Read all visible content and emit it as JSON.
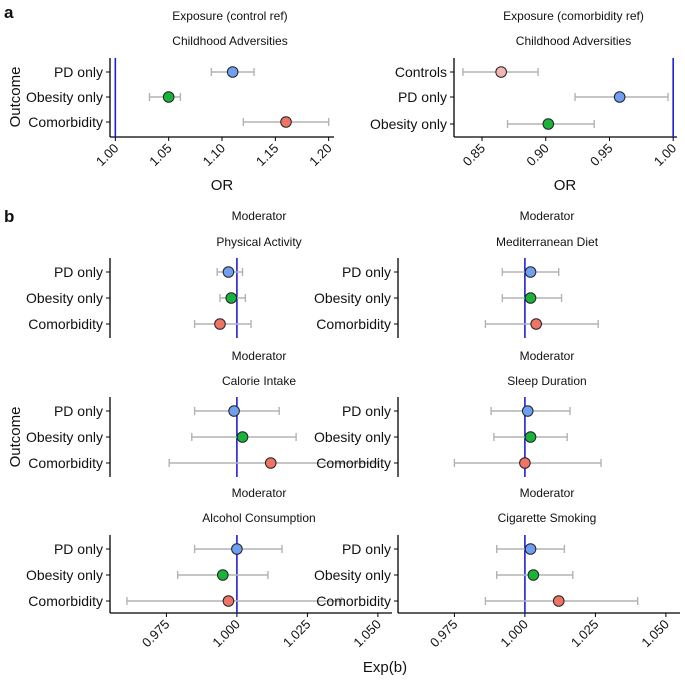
{
  "figure": {
    "panel_a_label": "a",
    "panel_b_label": "b",
    "outcome_label": "Outcome",
    "or_label": "OR",
    "expb_label": "Exp(b)"
  },
  "colors": {
    "Controls": "#f4b6b0",
    "PD only": "#6f9ff0",
    "Obesity only": "#19b23b",
    "Comorbidity": "#ee7466",
    "refline": "#1f1fd6",
    "whisker": "#b3b3b3"
  },
  "chart_data": [
    {
      "id": "a1",
      "type": "forest",
      "header": "Exposure (control ref)",
      "title": "Childhood Adversities",
      "xlabel": "OR",
      "xlim": [
        0.995,
        1.205
      ],
      "ref": 1.0,
      "ticks": [
        "1.00",
        "1.05",
        "1.10",
        "1.15",
        "1.20"
      ],
      "tick_values": [
        1.0,
        1.05,
        1.1,
        1.15,
        1.2
      ],
      "categories": [
        "PD only",
        "Obesity only",
        "Comorbidity"
      ],
      "estimates": [
        1.11,
        1.05,
        1.16
      ],
      "lower": [
        1.09,
        1.032,
        1.12
      ],
      "upper": [
        1.13,
        1.061,
        1.2
      ]
    },
    {
      "id": "a2",
      "type": "forest",
      "header": "Exposure (comorbidity ref)",
      "title": "Childhood Adversities",
      "xlabel": "OR",
      "xlim": [
        0.828,
        1.003
      ],
      "ref": 1.0,
      "ticks": [
        "0.85",
        "0.90",
        "0.95",
        "1.00"
      ],
      "tick_values": [
        0.85,
        0.9,
        0.95,
        1.0
      ],
      "categories": [
        "Controls",
        "PD only",
        "Obesity only"
      ],
      "estimates": [
        0.865,
        0.958,
        0.902
      ],
      "lower": [
        0.835,
        0.923,
        0.87
      ],
      "upper": [
        0.894,
        0.996,
        0.938
      ]
    },
    {
      "id": "b1",
      "type": "forest",
      "header": "Moderator",
      "title": "Physical Activity",
      "xlim": [
        0.955,
        1.055
      ],
      "ref": 1.0,
      "categories": [
        "PD only",
        "Obesity only",
        "Comorbidity"
      ],
      "estimates": [
        0.997,
        0.998,
        0.994
      ],
      "lower": [
        0.993,
        0.994,
        0.985
      ],
      "upper": [
        1.002,
        1.003,
        1.005
      ]
    },
    {
      "id": "b2",
      "type": "forest",
      "header": "Moderator",
      "title": "Mediterranean Diet",
      "xlim": [
        0.955,
        1.055
      ],
      "ref": 1.0,
      "categories": [
        "PD only",
        "Obesity only",
        "Comorbidity"
      ],
      "estimates": [
        1.002,
        1.002,
        1.004
      ],
      "lower": [
        0.992,
        0.992,
        0.986
      ],
      "upper": [
        1.012,
        1.013,
        1.026
      ]
    },
    {
      "id": "b3",
      "type": "forest",
      "header": "Moderator",
      "title": "Calorie Intake",
      "xlim": [
        0.955,
        1.055
      ],
      "ref": 1.0,
      "categories": [
        "PD only",
        "Obesity only",
        "Comorbidity"
      ],
      "estimates": [
        0.999,
        1.002,
        1.012
      ],
      "lower": [
        0.985,
        0.984,
        0.976
      ],
      "upper": [
        1.015,
        1.021,
        1.05
      ]
    },
    {
      "id": "b4",
      "type": "forest",
      "header": "Moderator",
      "title": "Sleep Duration",
      "xlim": [
        0.955,
        1.055
      ],
      "ref": 1.0,
      "categories": [
        "PD only",
        "Obesity only",
        "Comorbidity"
      ],
      "estimates": [
        1.001,
        1.002,
        1.0
      ],
      "lower": [
        0.988,
        0.989,
        0.975
      ],
      "upper": [
        1.016,
        1.015,
        1.027
      ]
    },
    {
      "id": "b5",
      "type": "forest",
      "header": "Moderator",
      "title": "Alcohol Consumption",
      "xlabel": "Exp(b)",
      "xlim": [
        0.955,
        1.055
      ],
      "ref": 1.0,
      "ticks": [
        "0.975",
        "1.000",
        "1.025",
        "1.050"
      ],
      "tick_values": [
        0.975,
        1.0,
        1.025,
        1.05
      ],
      "categories": [
        "PD only",
        "Obesity only",
        "Comorbidity"
      ],
      "estimates": [
        1.0,
        0.995,
        0.997
      ],
      "lower": [
        0.985,
        0.979,
        0.961
      ],
      "upper": [
        1.016,
        1.011,
        1.037
      ]
    },
    {
      "id": "b6",
      "type": "forest",
      "header": "Moderator",
      "title": "Cigarette Smoking",
      "xlabel": "Exp(b)",
      "xlim": [
        0.955,
        1.055
      ],
      "ref": 1.0,
      "ticks": [
        "0.975",
        "1.000",
        "1.025",
        "1.050"
      ],
      "tick_values": [
        0.975,
        1.0,
        1.025,
        1.05
      ],
      "categories": [
        "PD only",
        "Obesity only",
        "Comorbidity"
      ],
      "estimates": [
        1.002,
        1.003,
        1.012
      ],
      "lower": [
        0.99,
        0.99,
        0.986
      ],
      "upper": [
        1.014,
        1.017,
        1.04
      ]
    }
  ]
}
